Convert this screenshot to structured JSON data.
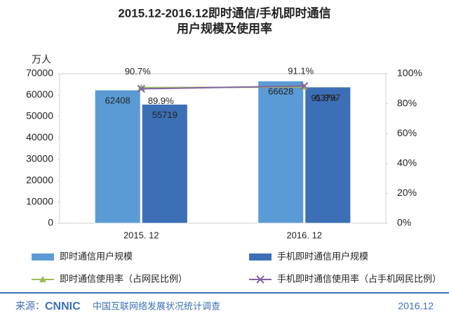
{
  "chart_data": {
    "type": "bar-line",
    "title": "2015.12-2016.12即时通信/手机即时通信",
    "subtitle": "用户规模及使用率",
    "y_label": "万人",
    "categories": [
      "2015. 12",
      "2016. 12"
    ],
    "series": [
      {
        "name": "即时通信用户规模",
        "type": "bar",
        "color": "#5b9bd5",
        "values": [
          62408,
          66628
        ]
      },
      {
        "name": "手机即时通信用户规模",
        "type": "bar",
        "color": "#3d6fb6",
        "values": [
          55719,
          63797
        ]
      },
      {
        "name": "即时通信使用率（占网民比例）",
        "type": "line",
        "axis": "y2",
        "color": "#9bbb59",
        "marker": "triangle",
        "values": [
          90.7,
          91.1
        ],
        "value_labels": [
          "90.7%",
          "91.1%"
        ]
      },
      {
        "name": "手机即时通信使用率（占手机网民比例）",
        "type": "line",
        "axis": "y2",
        "color": "#8064a2",
        "marker": "x",
        "values": [
          89.9,
          91.8
        ],
        "value_labels": [
          "89.9%",
          "91.8%"
        ]
      }
    ],
    "ylim": [
      0,
      70000
    ],
    "yticks": [
      0,
      10000,
      20000,
      30000,
      40000,
      50000,
      60000,
      70000
    ],
    "y2lim": [
      0,
      100
    ],
    "y2ticks": [
      {
        "value": 0,
        "label": "0%"
      },
      {
        "value": 20,
        "label": "20%"
      },
      {
        "value": 40,
        "label": "40%"
      },
      {
        "value": 60,
        "label": "60%"
      },
      {
        "value": 80,
        "label": "80%"
      },
      {
        "value": 100,
        "label": "100%"
      }
    ]
  },
  "footer": {
    "source_label": "来源：",
    "logo": "CNNIC",
    "organization": "中国互联网络发展状况统计调查",
    "date": "2016.12"
  }
}
